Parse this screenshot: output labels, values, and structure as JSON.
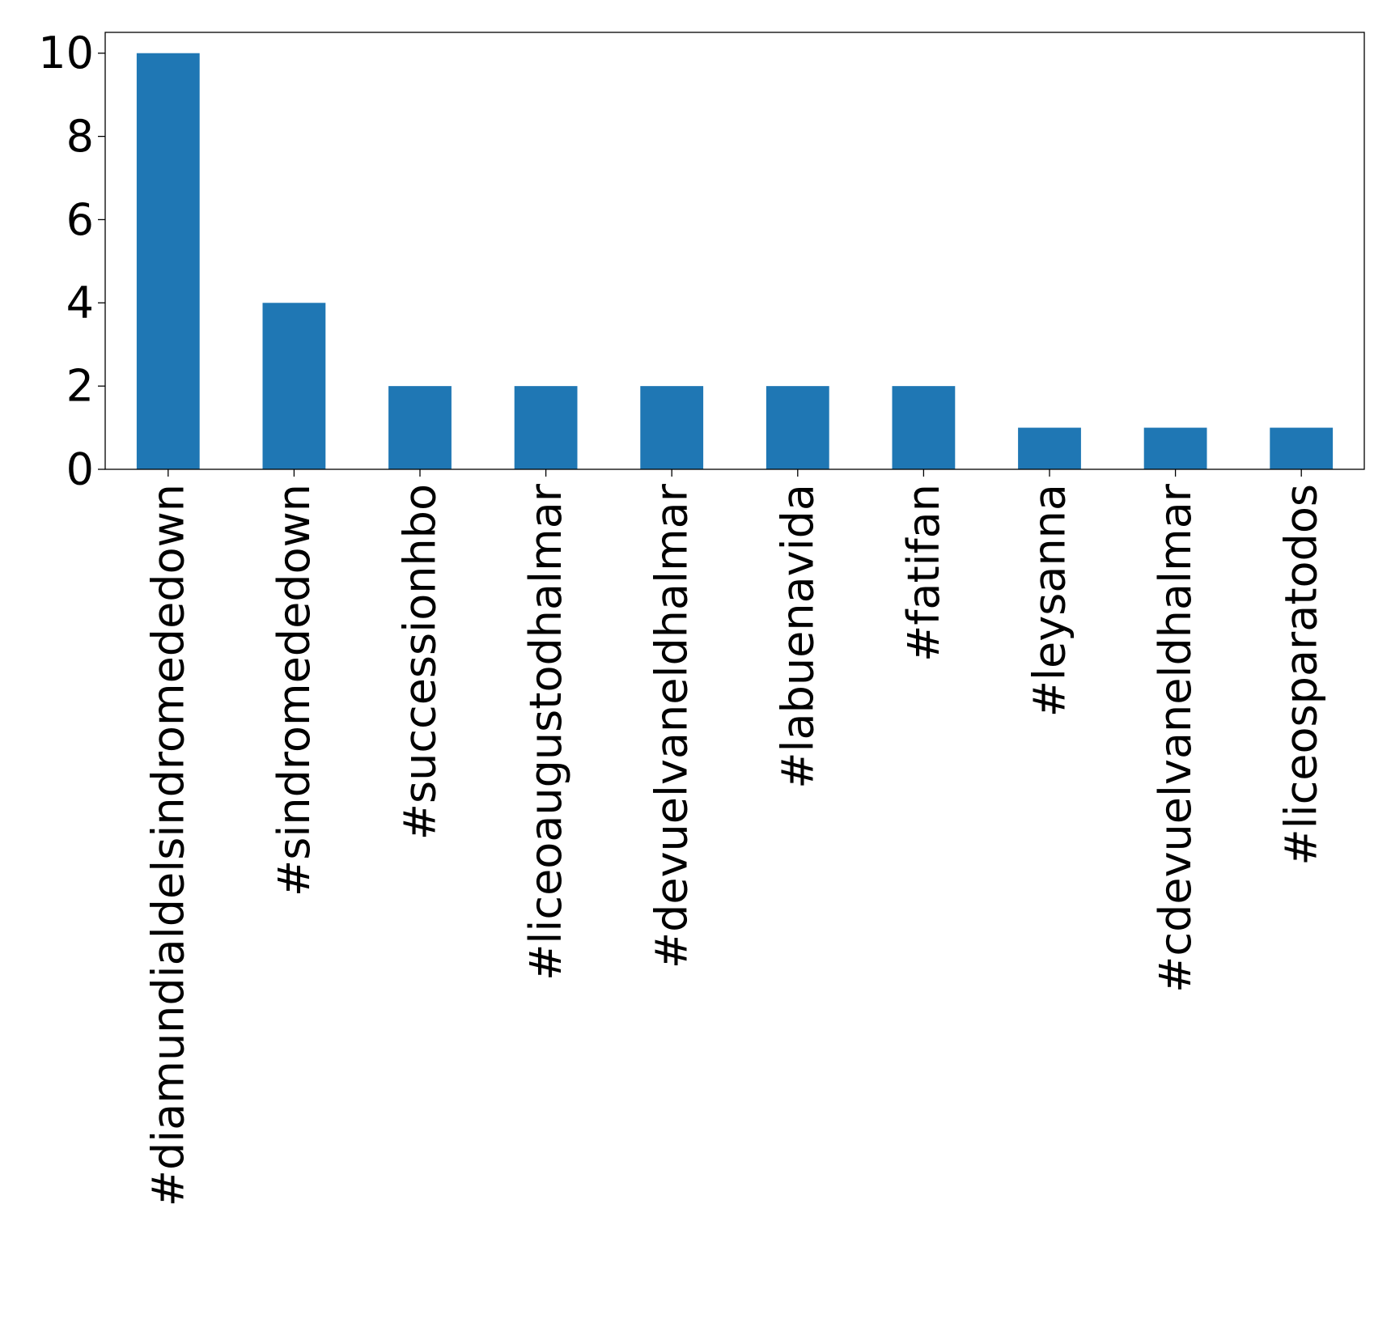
{
  "chart_data": {
    "type": "bar",
    "title": "",
    "xlabel": "",
    "ylabel": "",
    "categories": [
      "#diamundialdelsindromededown",
      "#sindromededown",
      "#successionhbo",
      "#liceoaugustodhalmar",
      "#devuelvaneldhalmar",
      "#labuenavida",
      "#fatifan",
      "#leysanna",
      "#cdevuelvaneldhalmar",
      "#liceosparatodos"
    ],
    "values": [
      10,
      4,
      2,
      2,
      2,
      2,
      2,
      1,
      1,
      1
    ],
    "ylim": [
      0,
      10.5
    ],
    "yticks": [
      0,
      2,
      4,
      6,
      8,
      10
    ],
    "bar_color": "#1f77b4",
    "grid": false,
    "legend": "none"
  }
}
